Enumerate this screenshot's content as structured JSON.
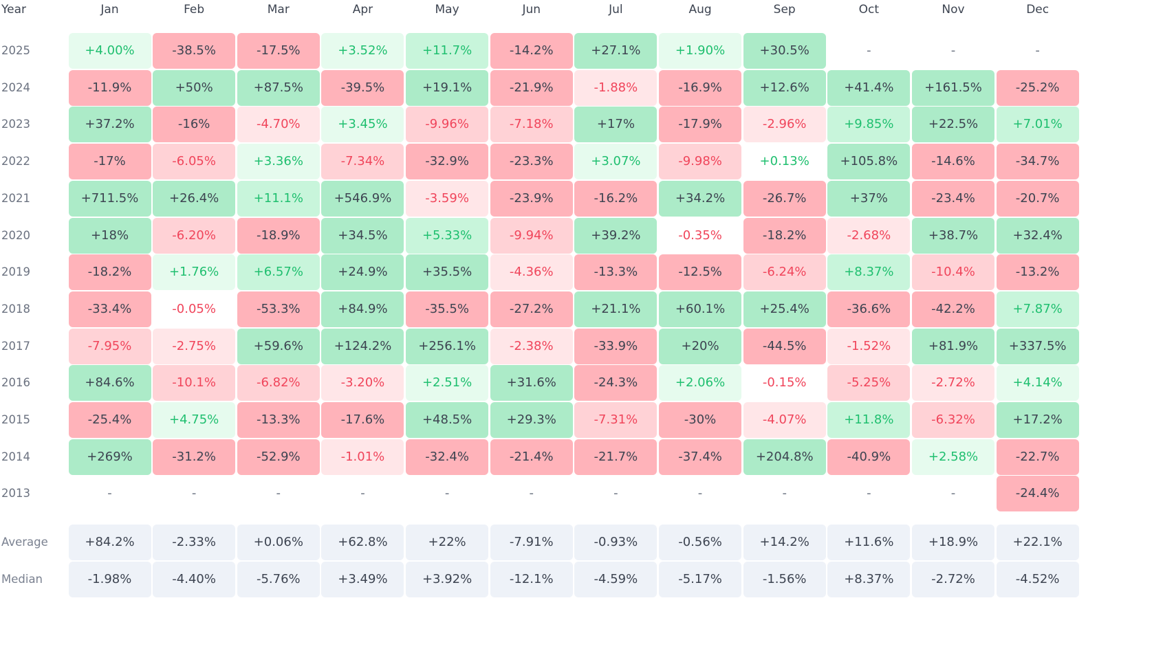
{
  "chart_data": {
    "type": "heatmap",
    "header_label": "Year",
    "months": [
      "Jan",
      "Feb",
      "Mar",
      "Apr",
      "May",
      "Jun",
      "Jul",
      "Aug",
      "Sep",
      "Oct",
      "Nov",
      "Dec"
    ],
    "rows": [
      {
        "year": "2025",
        "values": [
          "+4.00%",
          "-38.5%",
          "-17.5%",
          "+3.52%",
          "+11.7%",
          "-14.2%",
          "+27.1%",
          "+1.90%",
          "+30.5%",
          "-",
          "-",
          "-"
        ]
      },
      {
        "year": "2024",
        "values": [
          "-11.9%",
          "+50%",
          "+87.5%",
          "-39.5%",
          "+19.1%",
          "-21.9%",
          "-1.88%",
          "-16.9%",
          "+12.6%",
          "+41.4%",
          "+161.5%",
          "-25.2%"
        ]
      },
      {
        "year": "2023",
        "values": [
          "+37.2%",
          "-16%",
          "-4.70%",
          "+3.45%",
          "-9.96%",
          "-7.18%",
          "+17%",
          "-17.9%",
          "-2.96%",
          "+9.85%",
          "+22.5%",
          "+7.01%"
        ]
      },
      {
        "year": "2022",
        "values": [
          "-17%",
          "-6.05%",
          "+3.36%",
          "-7.34%",
          "-32.9%",
          "-23.3%",
          "+3.07%",
          "-9.98%",
          "+0.13%",
          "+105.8%",
          "-14.6%",
          "-34.7%"
        ]
      },
      {
        "year": "2021",
        "values": [
          "+711.5%",
          "+26.4%",
          "+11.1%",
          "+546.9%",
          "-3.59%",
          "-23.9%",
          "-16.2%",
          "+34.2%",
          "-26.7%",
          "+37%",
          "-23.4%",
          "-20.7%"
        ]
      },
      {
        "year": "2020",
        "values": [
          "+18%",
          "-6.20%",
          "-18.9%",
          "+34.5%",
          "+5.33%",
          "-9.94%",
          "+39.2%",
          "-0.35%",
          "-18.2%",
          "-2.68%",
          "+38.7%",
          "+32.4%"
        ]
      },
      {
        "year": "2019",
        "values": [
          "-18.2%",
          "+1.76%",
          "+6.57%",
          "+24.9%",
          "+35.5%",
          "-4.36%",
          "-13.3%",
          "-12.5%",
          "-6.24%",
          "+8.37%",
          "-10.4%",
          "-13.2%"
        ]
      },
      {
        "year": "2018",
        "values": [
          "-33.4%",
          "-0.05%",
          "-53.3%",
          "+84.9%",
          "-35.5%",
          "-27.2%",
          "+21.1%",
          "+60.1%",
          "+25.4%",
          "-36.6%",
          "-42.2%",
          "+7.87%"
        ]
      },
      {
        "year": "2017",
        "values": [
          "-7.95%",
          "-2.75%",
          "+59.6%",
          "+124.2%",
          "+256.1%",
          "-2.38%",
          "-33.9%",
          "+20%",
          "-44.5%",
          "-1.52%",
          "+81.9%",
          "+337.5%"
        ]
      },
      {
        "year": "2016",
        "values": [
          "+84.6%",
          "-10.1%",
          "-6.82%",
          "-3.20%",
          "+2.51%",
          "+31.6%",
          "-24.3%",
          "+2.06%",
          "-0.15%",
          "-5.25%",
          "-2.72%",
          "+4.14%"
        ]
      },
      {
        "year": "2015",
        "values": [
          "-25.4%",
          "+4.75%",
          "-13.3%",
          "-17.6%",
          "+48.5%",
          "+29.3%",
          "-7.31%",
          "-30%",
          "-4.07%",
          "+11.8%",
          "-6.32%",
          "+17.2%"
        ]
      },
      {
        "year": "2014",
        "values": [
          "+269%",
          "-31.2%",
          "-52.9%",
          "-1.01%",
          "-32.4%",
          "-21.4%",
          "-21.7%",
          "-37.4%",
          "+204.8%",
          "-40.9%",
          "+2.58%",
          "-22.7%"
        ]
      },
      {
        "year": "2013",
        "values": [
          "-",
          "-",
          "-",
          "-",
          "-",
          "-",
          "-",
          "-",
          "-",
          "-",
          "-",
          "-24.4%"
        ]
      }
    ],
    "stats": [
      {
        "label": "Average",
        "values": [
          "+84.2%",
          "-2.33%",
          "+0.06%",
          "+62.8%",
          "+22%",
          "-7.91%",
          "-0.93%",
          "-0.56%",
          "+14.2%",
          "+11.6%",
          "+18.9%",
          "+22.1%"
        ]
      },
      {
        "label": "Median",
        "values": [
          "-1.98%",
          "-4.40%",
          "-5.76%",
          "+3.49%",
          "+3.92%",
          "-12.1%",
          "-4.59%",
          "-5.17%",
          "-1.56%",
          "+8.37%",
          "-2.72%",
          "-4.52%"
        ]
      }
    ],
    "colors": {
      "green_strong_bg": "#acebc8",
      "green_mid_bg": "#c8f5db",
      "green_light_bg": "#e6fbee",
      "red_strong_bg": "#ffb3ba",
      "red_mid_bg": "#ffd2d6",
      "red_light_bg": "#ffe6e8",
      "strong_text": "#3d4451",
      "green_text": "#1fbf6f",
      "red_text": "#f0455b",
      "stat_bg": "#eef2f8"
    }
  }
}
